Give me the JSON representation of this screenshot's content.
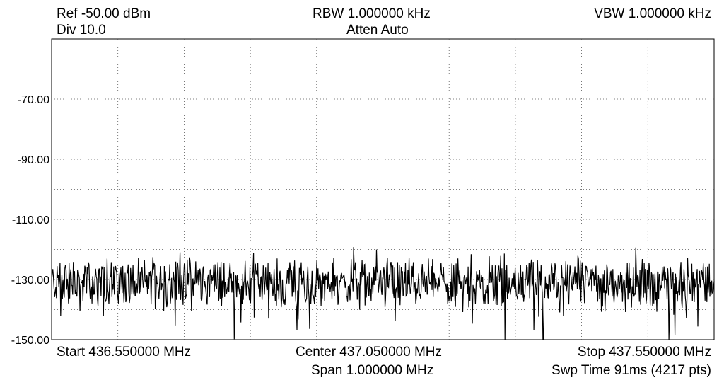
{
  "header": {
    "ref": "Ref -50.00 dBm",
    "div": "Div 10.0",
    "rbw": "RBW 1.000000 kHz",
    "atten": "Atten Auto",
    "vbw": "VBW 1.000000 kHz"
  },
  "footer": {
    "start": "Start 436.550000 MHz",
    "center": "Center 437.050000 MHz",
    "span": "Span 1.000000 MHz",
    "stop": "Stop 437.550000 MHz",
    "swp": "Swp Time 91ms (4217 pts)"
  },
  "chart_data": {
    "type": "line",
    "x_unit": "MHz",
    "y_unit": "dBm",
    "xlim": [
      436.55,
      437.55
    ],
    "ylim": [
      -150,
      -50
    ],
    "yticks": [
      -70,
      -90,
      -110,
      -130,
      -150
    ],
    "ytick_labels": [
      "-70.00",
      "-90.00",
      "-110.00",
      "-130.00",
      "-150.00"
    ],
    "grid": true,
    "points": 4217,
    "noise_floor_dbm": -131,
    "noise_ripple_range_dbm": [
      -142,
      -124
    ],
    "spikes": [
      {
        "x_mhz": 437.234,
        "y_dbm": -151
      },
      {
        "x_mhz": 437.292,
        "y_dbm": -151
      },
      {
        "x_mhz": 437.482,
        "y_dbm": -151
      }
    ]
  }
}
